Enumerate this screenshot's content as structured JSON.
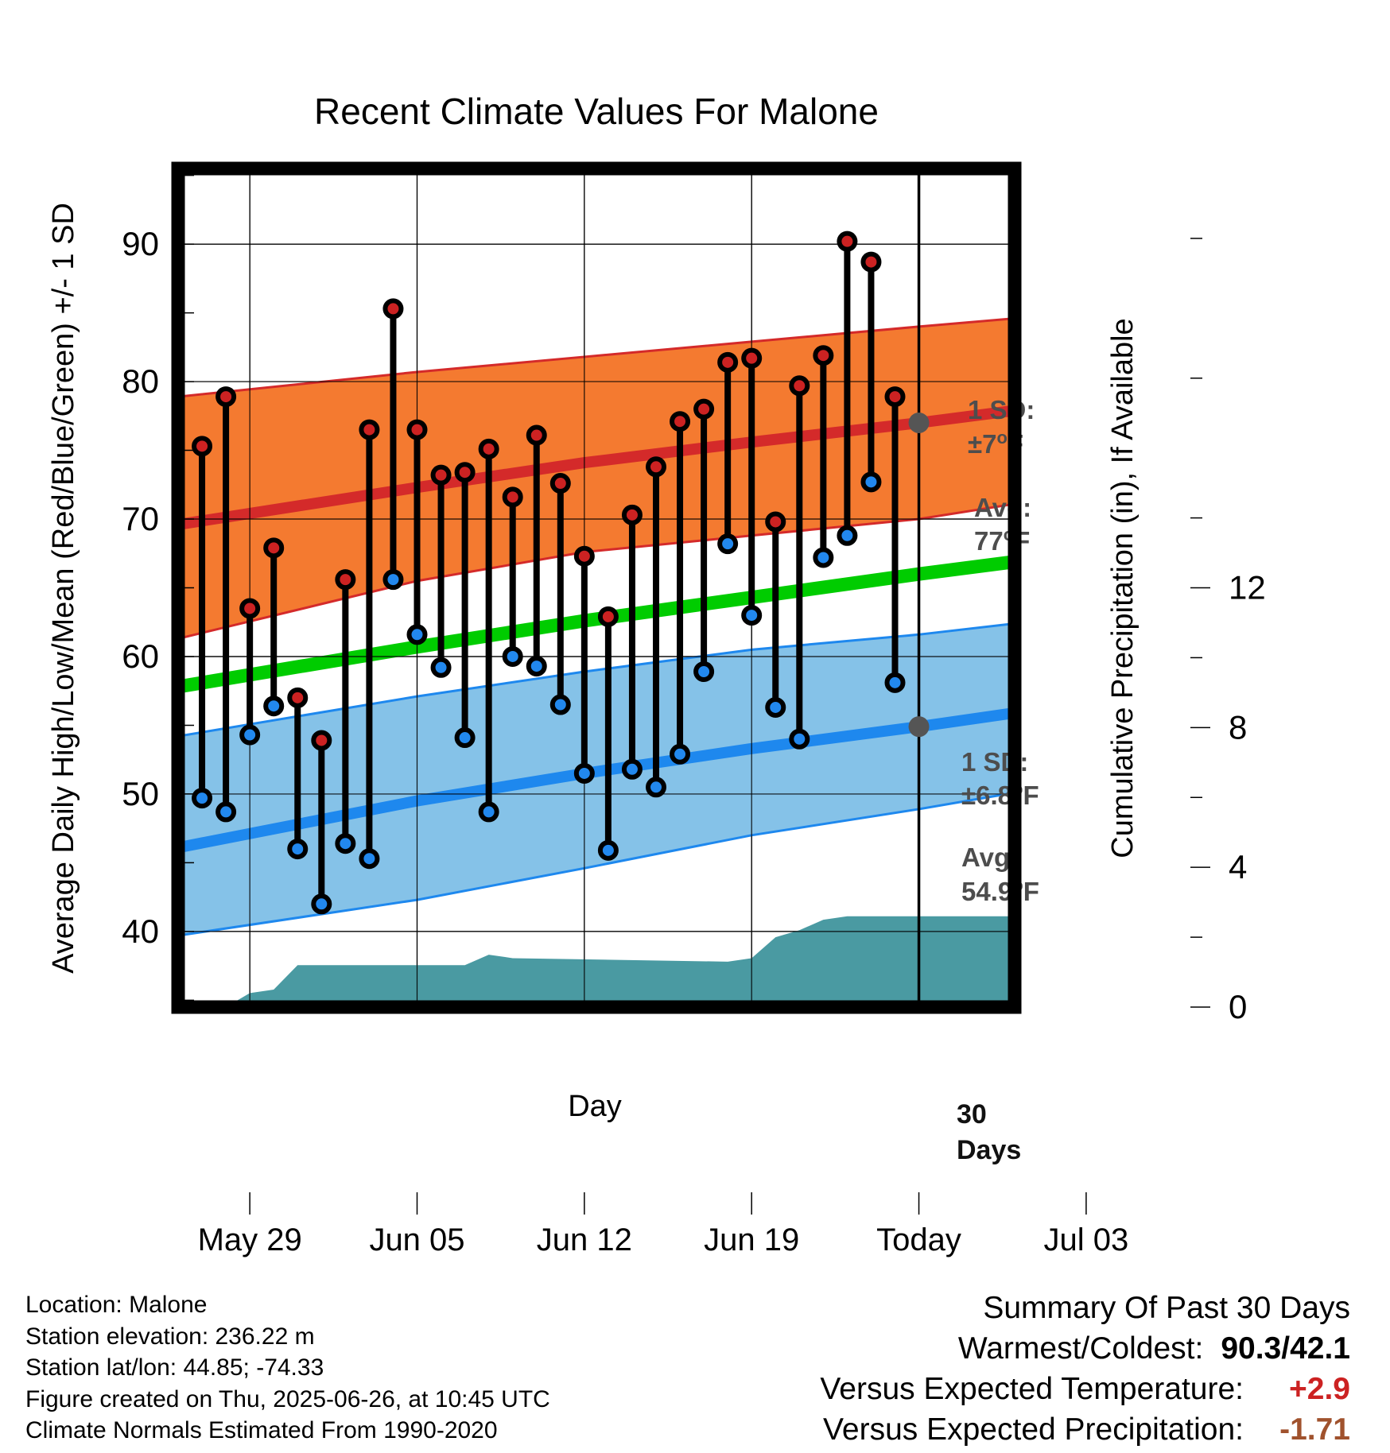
{
  "chart_data": {
    "type": "line",
    "title": "Recent Climate Values For Malone",
    "xlabel": "Day",
    "ylabel": "Average Daily High/Low/Mean (Red/Blue/Green) +/- 1 SD",
    "y2label": "Cumulative Precipitation (in), If Available",
    "x_tick_labels": [
      "May 29",
      "Jun 05",
      "Jun 12",
      "Jun 19",
      "Today",
      "Jul 03"
    ],
    "y_ticks": [
      40,
      50,
      60,
      70,
      80,
      90
    ],
    "y2_ticks": [
      0,
      4,
      8,
      12
    ],
    "ylim": [
      34.5,
      95.5
    ],
    "y2lim": [
      0,
      24
    ],
    "xlim": [
      "May 26",
      "Jul 13"
    ],
    "grid": true,
    "today_marker": "Jun 26",
    "x_dates": [
      "May 27",
      "May 28",
      "May 29",
      "May 30",
      "May 31",
      "Jun 01",
      "Jun 02",
      "Jun 03",
      "Jun 04",
      "Jun 05",
      "Jun 06",
      "Jun 07",
      "Jun 08",
      "Jun 09",
      "Jun 10",
      "Jun 11",
      "Jun 12",
      "Jun 13",
      "Jun 14",
      "Jun 15",
      "Jun 16",
      "Jun 17",
      "Jun 18",
      "Jun 19",
      "Jun 20",
      "Jun 21",
      "Jun 22",
      "Jun 23",
      "Jun 24",
      "Jun 25"
    ],
    "series": [
      {
        "name": "High",
        "color": "#cc2222",
        "values": [
          75.3,
          78.9,
          63.5,
          67.9,
          57.0,
          53.9,
          65.6,
          76.5,
          85.3,
          76.5,
          73.2,
          73.4,
          75.1,
          71.6,
          76.1,
          72.6,
          67.3,
          62.9,
          70.3,
          73.8,
          77.1,
          78.0,
          81.4,
          81.7,
          69.8,
          79.7,
          81.9,
          90.2,
          88.7,
          78.9
        ]
      },
      {
        "name": "Low",
        "color": "#2288ee",
        "values": [
          49.7,
          48.7,
          54.3,
          56.4,
          46.0,
          42.0,
          46.4,
          45.3,
          65.6,
          61.6,
          59.2,
          54.1,
          48.7,
          60.0,
          59.3,
          56.5,
          51.5,
          45.9,
          51.8,
          50.5,
          52.9,
          58.9,
          68.2,
          63.0,
          56.3,
          54.0,
          67.2,
          68.8,
          72.7,
          58.1
        ]
      }
    ],
    "normals": {
      "dates": [
        "May 26",
        "Jun 05",
        "Jun 12",
        "Jun 19",
        "Jun 26",
        "Jul 03",
        "Jul 13"
      ],
      "high_avg": [
        69.6,
        72.3,
        74.1,
        75.6,
        77.0,
        77.9,
        78.5
      ],
      "high_sd_upper": [
        78.9,
        80.7,
        81.8,
        82.9,
        84.0,
        84.6,
        85.0
      ],
      "high_sd_lower": [
        61.3,
        65.5,
        67.6,
        68.8,
        70.0,
        71.1,
        71.9
      ],
      "mean_avg": [
        57.8,
        60.7,
        62.6,
        64.3,
        66.0,
        66.9,
        67.5
      ],
      "low_avg": [
        46.1,
        49.5,
        51.5,
        53.3,
        54.9,
        55.9,
        56.5
      ],
      "low_sd_upper": [
        54.2,
        57.1,
        58.9,
        60.5,
        61.6,
        62.4,
        62.9
      ],
      "low_sd_lower": [
        39.7,
        42.3,
        44.6,
        47.0,
        48.9,
        50.1,
        50.6
      ]
    },
    "precip_cumulative": {
      "dates": [
        "May 28",
        "May 29",
        "May 30",
        "May 31",
        "Jun 07",
        "Jun 08",
        "Jun 09",
        "Jun 18",
        "Jun 19",
        "Jun 20",
        "Jun 21",
        "Jun 22",
        "Jun 23",
        "Jun 24",
        "Jul 13"
      ],
      "values": [
        0.0,
        0.4,
        0.5,
        1.2,
        1.2,
        1.5,
        1.4,
        1.3,
        1.4,
        2.0,
        2.2,
        2.5,
        2.6,
        2.6,
        2.6
      ]
    },
    "annotations": {
      "high_sd_title": "1 SD:",
      "high_sd_value": "±7",
      "high_sd_unit": "F",
      "high_avg_title": "Avg:",
      "high_avg_value": "77",
      "high_avg_unit": "F",
      "low_sd_title": "1 SD:",
      "low_sd_value": "±6.8",
      "low_sd_unit": "F",
      "low_avg_title": "Avg:",
      "low_avg_value": "54.9",
      "low_avg_unit": "F",
      "degree_symbol": "o",
      "precip_days_line1": "30",
      "precip_days_line2": "Days"
    },
    "colors": {
      "high_band": "#f47a30",
      "high_line": "#d42a2a",
      "low_band": "#85c2e8",
      "low_line": "#1e88ee",
      "mean_line": "#00cc00",
      "precip": "#4a9aa2",
      "marker_high": "#cc2222",
      "marker_low": "#2288ee",
      "marker_today": "#555555",
      "annotation_text": "#4d4d4d"
    }
  },
  "info": {
    "location": "Location: Malone",
    "elevation": "Station elevation: 236.22 m",
    "latlon": "Station lat/lon: 44.85; -74.33",
    "created": "Figure created on Thu, 2025-06-26, at 10:45 UTC",
    "normals": "Climate Normals Estimated From 1990-2020"
  },
  "summary": {
    "title": "Summary Of Past 30 Days",
    "warm_cold_label": "Warmest/Coldest:",
    "warm_cold_value": "90.3/42.1",
    "temp_label": "Versus Expected Temperature:",
    "temp_value": "+2.9",
    "temp_color": "#cc2222",
    "precip_label": "Versus Expected Precipitation:",
    "precip_value": "-1.71",
    "precip_color": "#a0522d"
  }
}
